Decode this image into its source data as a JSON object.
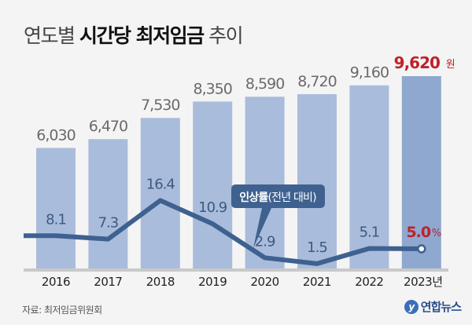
{
  "title": {
    "part1": "연도별 ",
    "part2": "시간당 최저임금",
    "part3": " 추이"
  },
  "source": "자료: 최저임금위원회",
  "logo": {
    "mark": "y",
    "text": "연합뉴스"
  },
  "colors": {
    "bar": "#a9bcdb",
    "bar_last": "#8ea8cf",
    "line": "#3e6190",
    "highlight": "#c0202a",
    "value_text": "#6a6a6a",
    "rate_text": "#3e5a82"
  },
  "chart_data": {
    "type": "bar+line",
    "title": "연도별 시간당 최저임금 추이",
    "categories": [
      "2016",
      "2017",
      "2018",
      "2019",
      "2020",
      "2021",
      "2022",
      "2023"
    ],
    "category_labels": [
      "2016",
      "2017",
      "2018",
      "2019",
      "2020",
      "2021",
      "2022",
      "2023년"
    ],
    "series": [
      {
        "name": "시간당 최저임금",
        "unit": "원",
        "type": "bar",
        "values": [
          6030,
          6470,
          7530,
          8350,
          8590,
          8720,
          9160,
          9620
        ],
        "labels": [
          "6,030",
          "6,470",
          "7,530",
          "8,350",
          "8,590",
          "8,720",
          "9,160",
          "9,620"
        ]
      },
      {
        "name": "인상률(전년 대비)",
        "unit": "%",
        "type": "line",
        "values": [
          8.1,
          7.3,
          16.4,
          10.9,
          2.9,
          1.5,
          5.1,
          5.0
        ],
        "labels": [
          "8.1",
          "7.3",
          "16.4",
          "10.9",
          "2.9",
          "1.5",
          "5.1",
          "5.0"
        ]
      }
    ],
    "callout": {
      "bold": "인상률",
      "rest": "(전년 대비)"
    },
    "last_bar_unit": "원",
    "last_rate_unit": "%",
    "ylim_bar": [
      0,
      9620
    ],
    "ylim_line": [
      0,
      16.4
    ],
    "grid": false
  }
}
